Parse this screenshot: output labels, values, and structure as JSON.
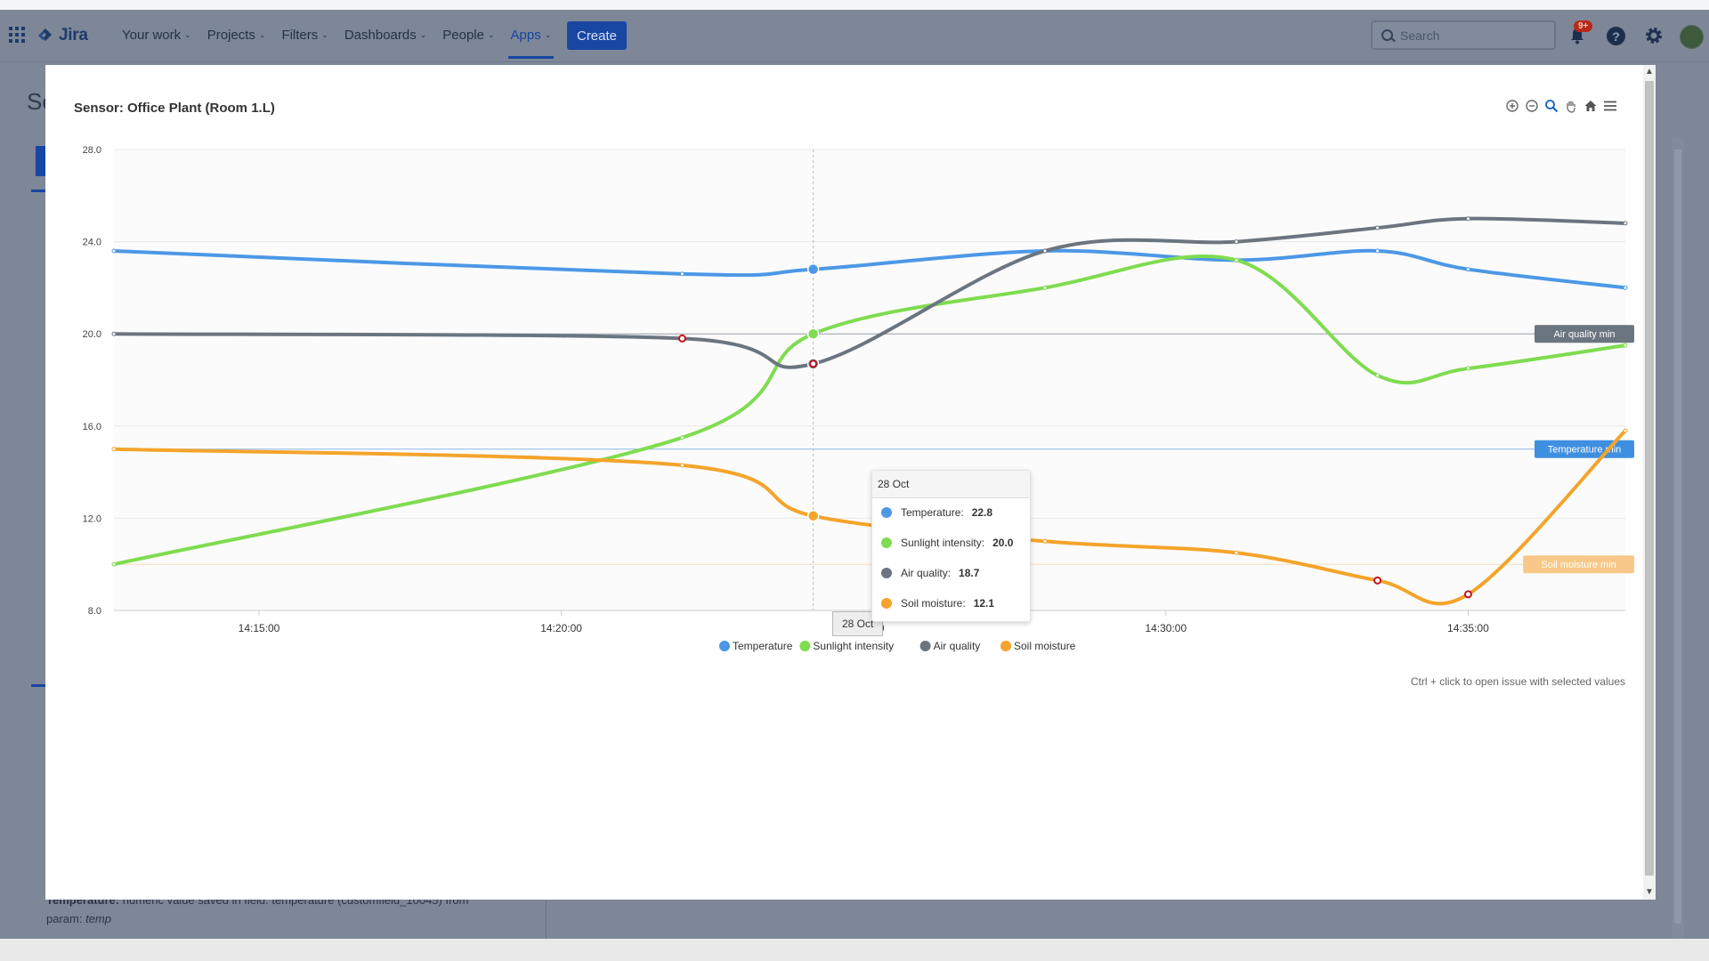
{
  "topbar": {
    "logo_text": "Jira",
    "menu": [
      {
        "label": "Your work"
      },
      {
        "label": "Projects"
      },
      {
        "label": "Filters"
      },
      {
        "label": "Dashboards"
      },
      {
        "label": "People"
      },
      {
        "label": "Apps"
      }
    ],
    "active_menu": "Apps",
    "create_label": "Create",
    "search_placeholder": "Search",
    "notifications_badge": "9+"
  },
  "background": {
    "title_fragment": "Se",
    "footer_line1_bold": "Temperature:",
    "footer_line1_rest": " numeric value saved in field: temperature (customfield_10045) from",
    "footer_line2_prefix": "param: ",
    "footer_line2_italic": "temp"
  },
  "modal": {
    "title": "Sensor: Office Plant (Room 1.L)",
    "hint": "Ctrl + click to open issue with selected values",
    "toolbar_icons": [
      "zoom-in-icon",
      "zoom-out-icon",
      "selection-zoom-icon",
      "pan-hand-icon",
      "home-reset-icon",
      "menu-icon"
    ]
  },
  "chart_data": {
    "type": "line",
    "xlabel": "",
    "ylabel": "",
    "ylim": [
      8,
      28
    ],
    "yticks": [
      "28.0",
      "24.0",
      "20.0",
      "16.0",
      "12.0",
      "8.0"
    ],
    "xlim": [
      "14:12:36",
      "14:37:36"
    ],
    "xticks": [
      "14:15:00",
      "14:20:00",
      "14:25:00",
      "14:30:00",
      "14:35:00"
    ],
    "grid": true,
    "legend_position": "bottom-center",
    "x": [
      "14:12:36",
      "14:22:00",
      "14:24:10",
      "14:28:00",
      "14:31:10",
      "14:33:30",
      "14:35:00",
      "14:37:36"
    ],
    "series": [
      {
        "name": "Temperature",
        "color": "#4c98e6",
        "values": [
          23.6,
          22.6,
          22.8,
          23.6,
          23.2,
          23.6,
          22.8,
          22.0
        ]
      },
      {
        "name": "Sunlight intensity",
        "color": "#7fdc50",
        "values": [
          10.0,
          15.5,
          20.0,
          22.0,
          23.2,
          18.2,
          18.5,
          19.5
        ]
      },
      {
        "name": "Air quality",
        "color": "#6b7580",
        "values": [
          20.0,
          19.8,
          18.7,
          23.6,
          24.0,
          24.6,
          25.0,
          24.8
        ]
      },
      {
        "name": "Soil moisture",
        "color": "#f4a42b",
        "values": [
          15.0,
          14.3,
          12.1,
          11.0,
          10.5,
          9.3,
          8.7,
          15.8
        ]
      }
    ],
    "plot_lines": [
      {
        "label": "Air quality min",
        "value": 20.0,
        "color": "#6b7580"
      },
      {
        "label": "Temperature min",
        "value": 15.0,
        "color": "#3f8fe0"
      },
      {
        "label": "Soil moisture min",
        "value": 10.0,
        "color": "#f7c887"
      }
    ],
    "tooltip": {
      "date": "28 Oct",
      "rows": [
        {
          "name": "Temperature:",
          "value": "22.8",
          "color": "#4c98e6"
        },
        {
          "name": "Sunlight intensity:",
          "value": "20.0",
          "color": "#7fdc50"
        },
        {
          "name": "Air quality:",
          "value": "18.7",
          "color": "#6b7580"
        },
        {
          "name": "Soil moisture:",
          "value": "12.1",
          "color": "#f4a42b"
        }
      ]
    },
    "crosshair_label": "28 Oct",
    "crosshair_time": "14:24:10"
  }
}
